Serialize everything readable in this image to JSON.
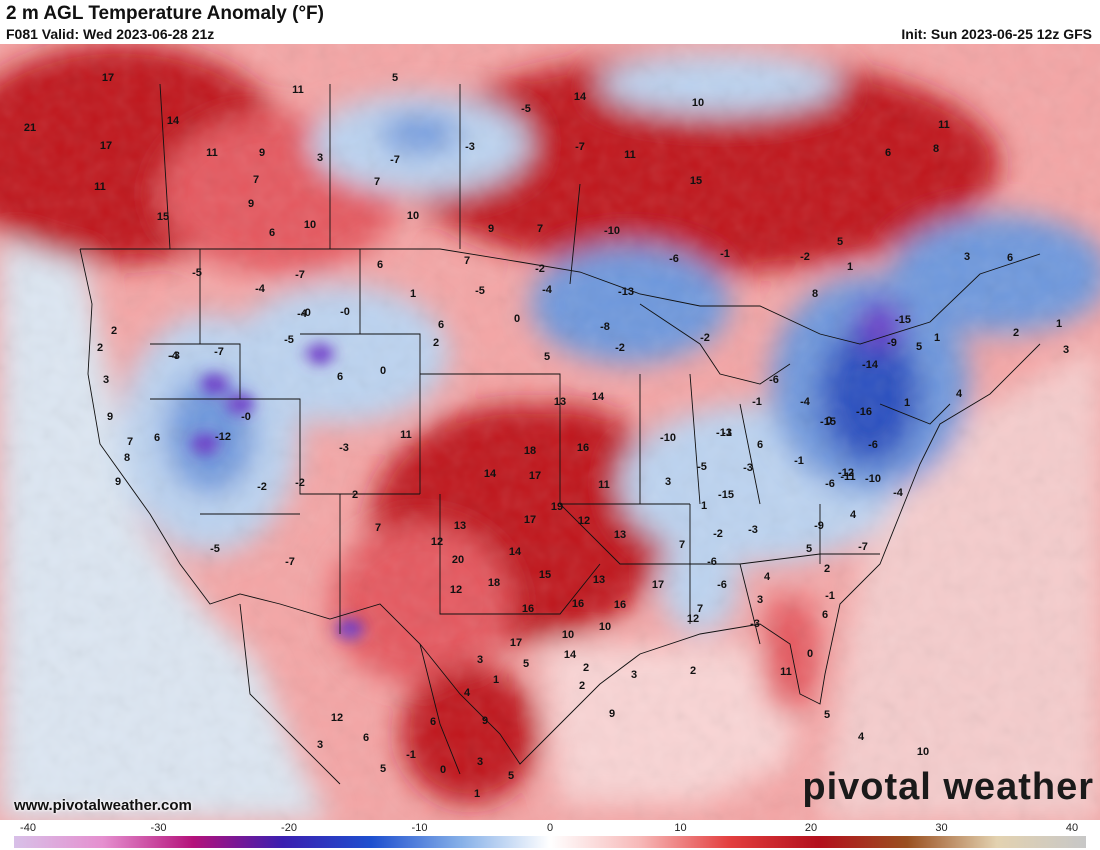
{
  "header": {
    "title": "2 m AGL Temperature Anomaly (°F)",
    "valid": "F081 Valid: Wed 2023-06-28 21z",
    "init": "Init: Sun 2023-06-25 12z GFS"
  },
  "footer": {
    "url": "www.pivotalweather.com",
    "brand": "pivotal weather"
  },
  "colorbar": {
    "ticks": [
      "-40",
      "-30",
      "-20",
      "-10",
      "0",
      "10",
      "20",
      "30",
      "40"
    ],
    "stops": [
      "#d8c0e8",
      "#e58fcf",
      "#b4127b",
      "#3b1fb0",
      "#1e4fcf",
      "#86b0e8",
      "#ffffff",
      "#f7b9b9",
      "#e34040",
      "#b30f1c",
      "#9a5021",
      "#e3d2b0",
      "#c7c7c7"
    ]
  },
  "map": {
    "colors": {
      "ocean_pacific": "#dce6f2",
      "ocean_gulf": "#f9d4d4",
      "ocean_atlantic": "#f5cccc",
      "warm_strong": "#c0141f",
      "warm_med": "#e5585e",
      "warm_light": "#f4a5a5",
      "cool_light": "#bcd3f0",
      "cool_med": "#6e98dd",
      "cool_strong": "#2a4fc0",
      "cool_deep": "#6a34c8",
      "border": "#111111"
    },
    "labels": [
      "17",
      "21",
      "14",
      "17",
      "11",
      "9",
      "11",
      "7",
      "9",
      "3",
      "5",
      "11",
      "6",
      "-5",
      "-7",
      "7",
      "10",
      "15",
      "9",
      "10",
      "6",
      "-3",
      "-5",
      "14",
      "10",
      "15",
      "11",
      "7",
      "-10",
      "8",
      "-7",
      "-7",
      "-1",
      "-13",
      "-8",
      "-2",
      "0",
      "-15",
      "-14",
      "-16",
      "-15",
      "-9",
      "-6",
      "-10",
      "2",
      "2",
      "3",
      "-5",
      "-2",
      "-4",
      "7",
      "1",
      "6",
      "5",
      "-2",
      "-6",
      "-4",
      "-4",
      "6",
      "-5",
      "-7",
      "-0",
      "-3",
      "9",
      "8",
      "-4",
      "7",
      "6",
      "-5",
      "-2",
      "-2",
      "-7",
      "-0",
      "0",
      "-12",
      "2",
      "-0",
      "9",
      "7",
      "-3",
      "2",
      "11",
      "13",
      "14",
      "18",
      "17",
      "14",
      "16",
      "11",
      "19",
      "17",
      "13",
      "12",
      "13",
      "12",
      "20",
      "14",
      "18",
      "15",
      "16",
      "16",
      "13",
      "10",
      "12",
      "17",
      "10",
      "9",
      "2",
      "3",
      "2",
      "16",
      "17",
      "12",
      "14",
      "7",
      "-6",
      "-2",
      "-6",
      "-3",
      "5",
      "4",
      "3",
      "1",
      "3",
      "-3",
      "0",
      "11",
      "6",
      "-1",
      "-5",
      "-10",
      "-3",
      "-1",
      "-6",
      "-11",
      "-4",
      "-6",
      "-1",
      "-4",
      "0",
      "-12",
      "-13",
      "-15",
      "-9",
      "-1",
      "-7",
      "2",
      "4",
      "1",
      "5",
      "1",
      "4",
      "1",
      "3",
      "2",
      "6",
      "3",
      "1",
      "-2",
      "8",
      "5",
      "6",
      "11",
      "10",
      "4",
      "5",
      "6",
      "7",
      "9",
      "2",
      "5",
      "3",
      "4",
      "6",
      "1",
      "5",
      "3",
      "1",
      "0",
      "5",
      "-1",
      "6",
      "12",
      "3"
    ]
  }
}
